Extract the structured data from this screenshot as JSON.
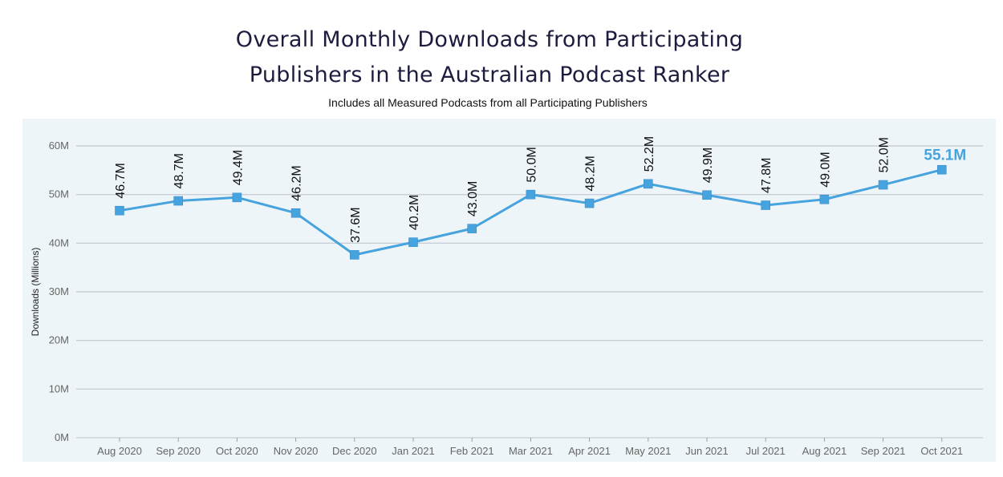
{
  "chart_data": {
    "type": "line",
    "title_lines": [
      "Overall Monthly Downloads from Participating",
      "Publishers in the Australian Podcast Ranker"
    ],
    "subtitle": "Includes all Measured Podcasts from all Participating Publishers",
    "ylabel": "Downloads (Millions)",
    "xlabel": "",
    "ylim": [
      0,
      60
    ],
    "yticks": [
      0,
      10,
      20,
      30,
      40,
      50,
      60
    ],
    "ytick_labels": [
      "0M",
      "10M",
      "20M",
      "30M",
      "40M",
      "50M",
      "60M"
    ],
    "grid": true,
    "x": [
      "Aug 2020",
      "Sep 2020",
      "Oct 2020",
      "Nov 2020",
      "Dec 2020",
      "Jan 2021",
      "Feb 2021",
      "Mar 2021",
      "Apr 2021",
      "May 2021",
      "Jun 2021",
      "Jul 2021",
      "Aug 2021",
      "Sep 2021",
      "Oct 2021"
    ],
    "values": [
      46.7,
      48.7,
      49.4,
      46.2,
      37.6,
      40.2,
      43.0,
      50.0,
      48.2,
      52.2,
      49.9,
      47.8,
      49.0,
      52.0,
      55.1
    ],
    "data_labels": [
      "46.7M",
      "48.7M",
      "49.4M",
      "46.2M",
      "37.6M",
      "40.2M",
      "43.0M",
      "50.0M",
      "48.2M",
      "52.2M",
      "49.9M",
      "47.8M",
      "49.0M",
      "52.0M",
      "55.1M"
    ],
    "colors": {
      "line": "#47a3de",
      "marker": "#47a3de",
      "plot_bg": "#eef5f9",
      "grid": "#c9ced6",
      "highlight_label": "#47a3de"
    }
  }
}
